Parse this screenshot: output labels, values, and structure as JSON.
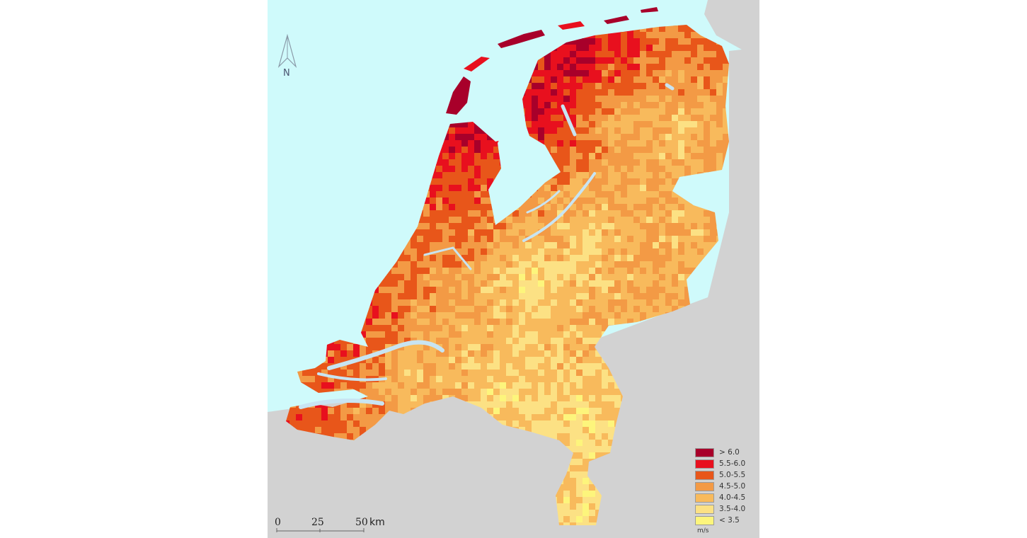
{
  "map": {
    "colors": {
      "sea": "#cffafb",
      "land_outside": "#d2d2d2",
      "inland_water": "#c8e4f2"
    },
    "legend": {
      "unit": "m/s",
      "classes": [
        {
          "label": "> 6.0",
          "color": "#a8002a"
        },
        {
          "label": "5.5-6.0",
          "color": "#e8101e"
        },
        {
          "label": "5.0-5.5",
          "color": "#e8561a"
        },
        {
          "label": "4.5-5.0",
          "color": "#f39a45"
        },
        {
          "label": "4.0-4.5",
          "color": "#f8ba5c"
        },
        {
          "label": "3.5-4.0",
          "color": "#fce184"
        },
        {
          "label": "< 3.5",
          "color": "#fdf57c"
        }
      ]
    },
    "north_arrow": {
      "label": "N"
    },
    "scale_bar": {
      "ticks": [
        "0",
        "25",
        "50"
      ],
      "unit": "km"
    }
  }
}
